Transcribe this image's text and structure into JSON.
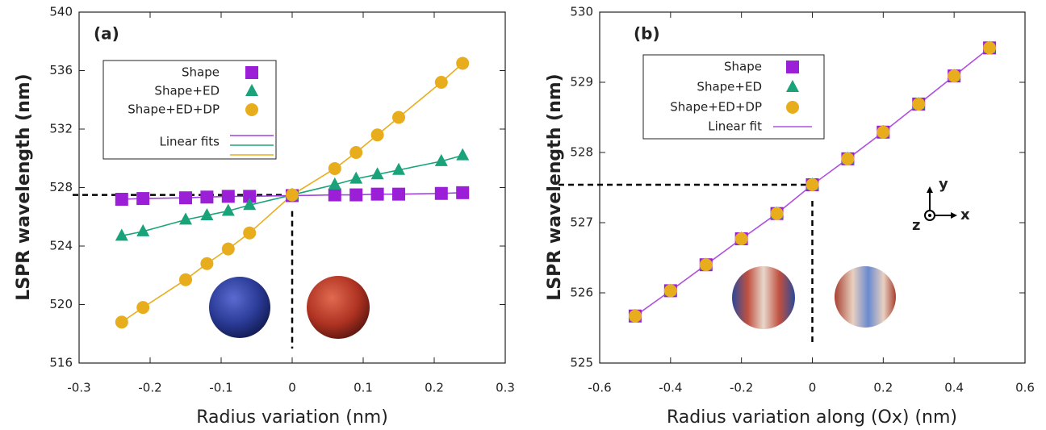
{
  "chart_data": [
    {
      "type": "line",
      "panel_label": "(a)",
      "x_label": "Radius variation (nm)",
      "y_label": "LSPR wavelength (nm)",
      "x": [
        -0.24,
        -0.21,
        -0.15,
        -0.12,
        -0.09,
        -0.06,
        0,
        0.06,
        0.09,
        0.12,
        0.15,
        0.21,
        0.24
      ],
      "series": [
        {
          "name": "Shape",
          "color": "#9b1fd6",
          "marker": "square",
          "fit_color": "#a040e0",
          "values": [
            527.2,
            527.25,
            527.3,
            527.35,
            527.4,
            527.4,
            527.45,
            527.5,
            527.5,
            527.55,
            527.55,
            527.6,
            527.65
          ]
        },
        {
          "name": "Shape+ED",
          "color": "#1aa37a",
          "marker": "triangle",
          "fit_color": "#1aa37a",
          "values": [
            524.7,
            525.0,
            525.8,
            526.1,
            526.4,
            526.8,
            527.5,
            528.2,
            528.6,
            528.9,
            529.2,
            529.8,
            530.2
          ]
        },
        {
          "name": "Shape+ED+DP",
          "color": "#e8ad1c",
          "marker": "circle",
          "fit_color": "#e8ad1c",
          "values": [
            518.8,
            519.8,
            521.7,
            522.8,
            523.8,
            524.9,
            527.5,
            529.3,
            530.4,
            531.6,
            532.8,
            535.2,
            536.5
          ]
        }
      ],
      "fit_name": "Linear fits",
      "xlim": [
        -0.3,
        0.3
      ],
      "xticks": [
        -0.3,
        -0.2,
        -0.1,
        0,
        0.1,
        0.2,
        0.3
      ],
      "ylim": [
        516,
        540
      ],
      "yticks": [
        516,
        520,
        524,
        528,
        532,
        536,
        540
      ]
    },
    {
      "type": "line",
      "panel_label": "(b)",
      "x_label": "Radius variation along (Ox) (nm)",
      "y_label": "LSPR wavelength (nm)",
      "x": [
        -0.5,
        -0.4,
        -0.3,
        -0.2,
        -0.1,
        0,
        0.1,
        0.2,
        0.3,
        0.4,
        0.5
      ],
      "series": [
        {
          "name": "Shape",
          "color": "#9b1fd6",
          "marker": "square",
          "values": [
            525.67,
            526.03,
            526.4,
            526.77,
            527.13,
            527.54,
            527.91,
            528.29,
            528.69,
            529.09,
            529.49
          ]
        },
        {
          "name": "Shape+ED",
          "color": "#1aa37a",
          "marker": "triangle",
          "values": [
            525.67,
            526.03,
            526.4,
            526.77,
            527.13,
            527.54,
            527.91,
            528.29,
            528.69,
            529.09,
            529.49
          ]
        },
        {
          "name": "Shape+ED+DP",
          "color": "#e8ad1c",
          "marker": "circle",
          "values": [
            525.67,
            526.03,
            526.4,
            526.77,
            527.13,
            527.54,
            527.91,
            528.29,
            528.69,
            529.09,
            529.49
          ]
        }
      ],
      "fit": {
        "name": "Linear fit",
        "color": "#b050e0"
      },
      "axis_glyph": {
        "y": "y",
        "x": "x",
        "z": "z"
      },
      "xlim": [
        -0.6,
        0.6
      ],
      "xticks": [
        -0.6,
        -0.4,
        -0.2,
        0,
        0.2,
        0.4,
        0.6
      ],
      "ylim": [
        525,
        530
      ],
      "yticks": [
        525,
        526,
        527,
        528,
        529,
        530
      ]
    }
  ]
}
